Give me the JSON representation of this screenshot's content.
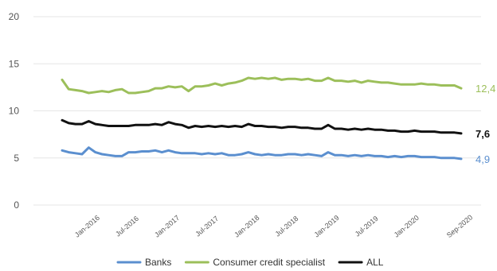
{
  "chart_data": {
    "type": "line",
    "title": "",
    "xlabel": "",
    "ylabel": "",
    "ylim": [
      0,
      20
    ],
    "yticks": [
      "0",
      "5",
      "10",
      "15",
      "20"
    ],
    "grid": true,
    "legend_position": "bottom",
    "x_ticks": [
      "Jan-2016",
      "Jul-2016",
      "Jan-2017",
      "Jul-2017",
      "Jan-2018",
      "Jul-2018",
      "Jan-2019",
      "Jul-2019",
      "Jan-2020",
      "Sep-2020"
    ],
    "series": [
      {
        "name": "Banks",
        "color": "#5b8fcf",
        "end_label": "4,9",
        "points": [
          [
            "2015-09",
            5.8
          ],
          [
            "2015-10",
            5.6
          ],
          [
            "2015-11",
            5.5
          ],
          [
            "2015-12",
            5.4
          ],
          [
            "2016-01",
            6.1
          ],
          [
            "2016-02",
            5.6
          ],
          [
            "2016-03",
            5.4
          ],
          [
            "2016-04",
            5.3
          ],
          [
            "2016-05",
            5.2
          ],
          [
            "2016-06",
            5.2
          ],
          [
            "2016-07",
            5.6
          ],
          [
            "2016-08",
            5.6
          ],
          [
            "2016-09",
            5.7
          ],
          [
            "2016-10",
            5.7
          ],
          [
            "2016-11",
            5.8
          ],
          [
            "2016-12",
            5.6
          ],
          [
            "2017-01",
            5.8
          ],
          [
            "2017-02",
            5.6
          ],
          [
            "2017-03",
            5.5
          ],
          [
            "2017-04",
            5.5
          ],
          [
            "2017-05",
            5.5
          ],
          [
            "2017-06",
            5.4
          ],
          [
            "2017-07",
            5.5
          ],
          [
            "2017-08",
            5.4
          ],
          [
            "2017-09",
            5.5
          ],
          [
            "2017-10",
            5.3
          ],
          [
            "2017-11",
            5.3
          ],
          [
            "2017-12",
            5.4
          ],
          [
            "2018-01",
            5.6
          ],
          [
            "2018-02",
            5.4
          ],
          [
            "2018-03",
            5.3
          ],
          [
            "2018-04",
            5.4
          ],
          [
            "2018-05",
            5.3
          ],
          [
            "2018-06",
            5.3
          ],
          [
            "2018-07",
            5.4
          ],
          [
            "2018-08",
            5.4
          ],
          [
            "2018-09",
            5.3
          ],
          [
            "2018-10",
            5.4
          ],
          [
            "2018-11",
            5.3
          ],
          [
            "2018-12",
            5.2
          ],
          [
            "2019-01",
            5.6
          ],
          [
            "2019-02",
            5.3
          ],
          [
            "2019-03",
            5.3
          ],
          [
            "2019-04",
            5.2
          ],
          [
            "2019-05",
            5.3
          ],
          [
            "2019-06",
            5.2
          ],
          [
            "2019-07",
            5.3
          ],
          [
            "2019-08",
            5.2
          ],
          [
            "2019-09",
            5.2
          ],
          [
            "2019-10",
            5.1
          ],
          [
            "2019-11",
            5.2
          ],
          [
            "2019-12",
            5.1
          ],
          [
            "2020-01",
            5.2
          ],
          [
            "2020-02",
            5.2
          ],
          [
            "2020-03",
            5.1
          ],
          [
            "2020-04",
            5.1
          ],
          [
            "2020-05",
            5.1
          ],
          [
            "2020-06",
            5.0
          ],
          [
            "2020-07",
            5.0
          ],
          [
            "2020-08",
            5.0
          ],
          [
            "2020-09",
            4.9
          ]
        ]
      },
      {
        "name": "Consumer credit specialist",
        "color": "#9cbf5a",
        "end_label": "12,4",
        "points": [
          [
            "2015-09",
            13.3
          ],
          [
            "2015-10",
            12.3
          ],
          [
            "2015-11",
            12.2
          ],
          [
            "2015-12",
            12.1
          ],
          [
            "2016-01",
            11.9
          ],
          [
            "2016-02",
            12.0
          ],
          [
            "2016-03",
            12.1
          ],
          [
            "2016-04",
            12.0
          ],
          [
            "2016-05",
            12.2
          ],
          [
            "2016-06",
            12.3
          ],
          [
            "2016-07",
            11.9
          ],
          [
            "2016-08",
            11.9
          ],
          [
            "2016-09",
            12.0
          ],
          [
            "2016-10",
            12.1
          ],
          [
            "2016-11",
            12.4
          ],
          [
            "2016-12",
            12.4
          ],
          [
            "2017-01",
            12.6
          ],
          [
            "2017-02",
            12.5
          ],
          [
            "2017-03",
            12.6
          ],
          [
            "2017-04",
            12.1
          ],
          [
            "2017-05",
            12.6
          ],
          [
            "2017-06",
            12.6
          ],
          [
            "2017-07",
            12.7
          ],
          [
            "2017-08",
            12.9
          ],
          [
            "2017-09",
            12.7
          ],
          [
            "2017-10",
            12.9
          ],
          [
            "2017-11",
            13.0
          ],
          [
            "2017-12",
            13.2
          ],
          [
            "2018-01",
            13.5
          ],
          [
            "2018-02",
            13.4
          ],
          [
            "2018-03",
            13.5
          ],
          [
            "2018-04",
            13.4
          ],
          [
            "2018-05",
            13.5
          ],
          [
            "2018-06",
            13.3
          ],
          [
            "2018-07",
            13.4
          ],
          [
            "2018-08",
            13.4
          ],
          [
            "2018-09",
            13.3
          ],
          [
            "2018-10",
            13.4
          ],
          [
            "2018-11",
            13.2
          ],
          [
            "2018-12",
            13.2
          ],
          [
            "2019-01",
            13.5
          ],
          [
            "2019-02",
            13.2
          ],
          [
            "2019-03",
            13.2
          ],
          [
            "2019-04",
            13.1
          ],
          [
            "2019-05",
            13.2
          ],
          [
            "2019-06",
            13.0
          ],
          [
            "2019-07",
            13.2
          ],
          [
            "2019-08",
            13.1
          ],
          [
            "2019-09",
            13.0
          ],
          [
            "2019-10",
            13.0
          ],
          [
            "2019-11",
            12.9
          ],
          [
            "2019-12",
            12.8
          ],
          [
            "2020-01",
            12.8
          ],
          [
            "2020-02",
            12.8
          ],
          [
            "2020-03",
            12.9
          ],
          [
            "2020-04",
            12.8
          ],
          [
            "2020-05",
            12.8
          ],
          [
            "2020-06",
            12.7
          ],
          [
            "2020-07",
            12.7
          ],
          [
            "2020-08",
            12.7
          ],
          [
            "2020-09",
            12.4
          ]
        ]
      },
      {
        "name": "ALL",
        "color": "#111111",
        "end_label": "7,6",
        "points": [
          [
            "2015-09",
            9.0
          ],
          [
            "2015-10",
            8.7
          ],
          [
            "2015-11",
            8.6
          ],
          [
            "2015-12",
            8.6
          ],
          [
            "2016-01",
            8.9
          ],
          [
            "2016-02",
            8.6
          ],
          [
            "2016-03",
            8.5
          ],
          [
            "2016-04",
            8.4
          ],
          [
            "2016-05",
            8.4
          ],
          [
            "2016-06",
            8.4
          ],
          [
            "2016-07",
            8.4
          ],
          [
            "2016-08",
            8.5
          ],
          [
            "2016-09",
            8.5
          ],
          [
            "2016-10",
            8.5
          ],
          [
            "2016-11",
            8.6
          ],
          [
            "2016-12",
            8.5
          ],
          [
            "2017-01",
            8.8
          ],
          [
            "2017-02",
            8.6
          ],
          [
            "2017-03",
            8.5
          ],
          [
            "2017-04",
            8.2
          ],
          [
            "2017-05",
            8.4
          ],
          [
            "2017-06",
            8.3
          ],
          [
            "2017-07",
            8.4
          ],
          [
            "2017-08",
            8.3
          ],
          [
            "2017-09",
            8.4
          ],
          [
            "2017-10",
            8.3
          ],
          [
            "2017-11",
            8.4
          ],
          [
            "2017-12",
            8.3
          ],
          [
            "2018-01",
            8.6
          ],
          [
            "2018-02",
            8.4
          ],
          [
            "2018-03",
            8.4
          ],
          [
            "2018-04",
            8.3
          ],
          [
            "2018-05",
            8.3
          ],
          [
            "2018-06",
            8.2
          ],
          [
            "2018-07",
            8.3
          ],
          [
            "2018-08",
            8.3
          ],
          [
            "2018-09",
            8.2
          ],
          [
            "2018-10",
            8.2
          ],
          [
            "2018-11",
            8.1
          ],
          [
            "2018-12",
            8.1
          ],
          [
            "2019-01",
            8.5
          ],
          [
            "2019-02",
            8.1
          ],
          [
            "2019-03",
            8.1
          ],
          [
            "2019-04",
            8.0
          ],
          [
            "2019-05",
            8.1
          ],
          [
            "2019-06",
            8.0
          ],
          [
            "2019-07",
            8.1
          ],
          [
            "2019-08",
            8.0
          ],
          [
            "2019-09",
            8.0
          ],
          [
            "2019-10",
            7.9
          ],
          [
            "2019-11",
            7.9
          ],
          [
            "2019-12",
            7.8
          ],
          [
            "2020-01",
            7.8
          ],
          [
            "2020-02",
            7.9
          ],
          [
            "2020-03",
            7.8
          ],
          [
            "2020-04",
            7.8
          ],
          [
            "2020-05",
            7.8
          ],
          [
            "2020-06",
            7.7
          ],
          [
            "2020-07",
            7.7
          ],
          [
            "2020-08",
            7.7
          ],
          [
            "2020-09",
            7.6
          ]
        ]
      }
    ]
  }
}
